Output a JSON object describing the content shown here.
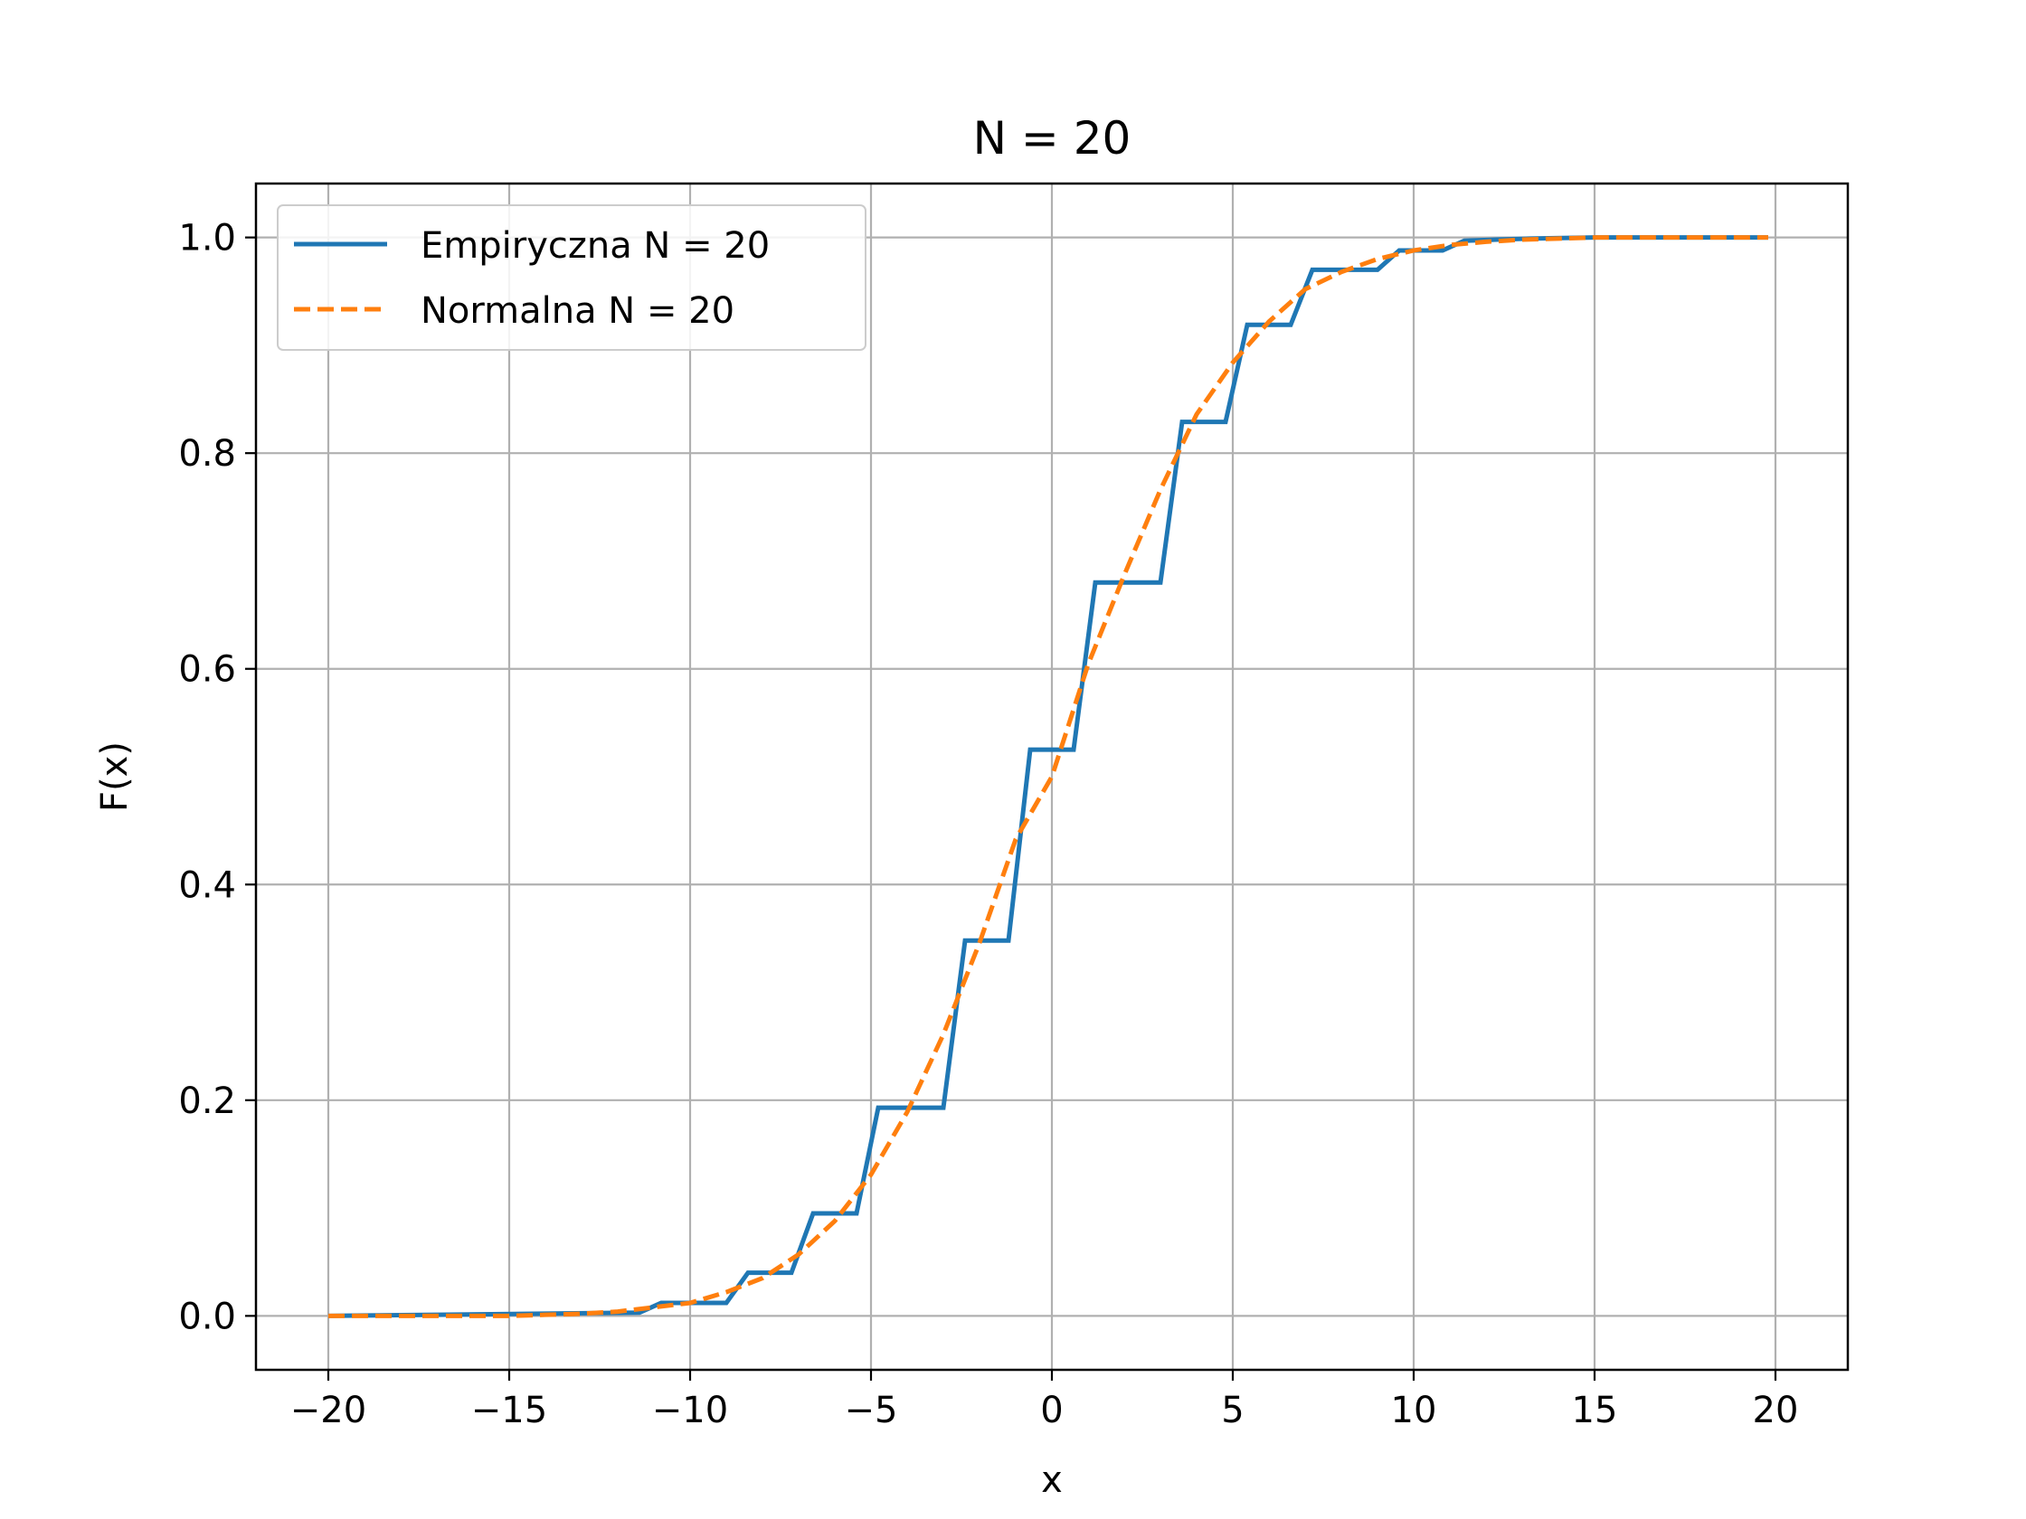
{
  "chart_data": {
    "type": "line",
    "title": "N = 20",
    "xlabel": "x",
    "ylabel": "F(x)",
    "xlim": [
      -22,
      22
    ],
    "ylim": [
      -0.05,
      1.05
    ],
    "xticks": [
      -20,
      -15,
      -10,
      -5,
      0,
      5,
      10,
      15,
      20
    ],
    "xtick_labels": [
      "−20",
      "−15",
      "−10",
      "−5",
      "0",
      "5",
      "10",
      "15",
      "20"
    ],
    "yticks": [
      0.0,
      0.2,
      0.4,
      0.6,
      0.8,
      1.0
    ],
    "ytick_labels": [
      "0.0",
      "0.2",
      "0.4",
      "0.6",
      "0.8",
      "1.0"
    ],
    "grid": true,
    "legend_position": "upper-left",
    "series": [
      {
        "name": "Empiryczna N = 20",
        "style": "solid",
        "color": "#1f77b4",
        "x": [
          -20,
          -11.4,
          -10.8,
          -9.0,
          -8.4,
          -7.2,
          -6.6,
          -5.4,
          -4.8,
          -3.0,
          -2.4,
          -1.2,
          -0.6,
          0.6,
          1.2,
          3.0,
          3.6,
          4.8,
          5.4,
          6.6,
          7.2,
          9.0,
          9.6,
          10.8,
          11.4,
          13.2,
          15.0,
          19.8
        ],
        "y": [
          0.0,
          0.003,
          0.012,
          0.012,
          0.04,
          0.04,
          0.095,
          0.095,
          0.193,
          0.193,
          0.348,
          0.348,
          0.525,
          0.525,
          0.68,
          0.68,
          0.829,
          0.829,
          0.919,
          0.919,
          0.97,
          0.97,
          0.988,
          0.988,
          0.997,
          0.999,
          1.0,
          1.0
        ]
      },
      {
        "name": "Normalna N = 20",
        "style": "dashed",
        "color": "#ff7f0e",
        "x": [
          -20,
          -19,
          -18,
          -17,
          -16,
          -15,
          -14,
          -13,
          -12,
          -11,
          -10,
          -9,
          -8,
          -7,
          -6,
          -5,
          -4,
          -3,
          -2,
          -1,
          0,
          1,
          2,
          3,
          4,
          5,
          6,
          7,
          8,
          9,
          10,
          11,
          12,
          13,
          14,
          15,
          16,
          17,
          18,
          19,
          19.8
        ],
        "y": [
          0.0,
          0.0,
          0.0,
          0.0,
          0.0,
          0.0,
          0.001,
          0.002,
          0.004,
          0.008,
          0.012,
          0.022,
          0.035,
          0.057,
          0.088,
          0.131,
          0.189,
          0.261,
          0.346,
          0.442,
          0.5,
          0.604,
          0.687,
          0.766,
          0.836,
          0.884,
          0.922,
          0.952,
          0.968,
          0.98,
          0.988,
          0.993,
          0.996,
          0.998,
          0.999,
          1.0,
          1.0,
          1.0,
          1.0,
          1.0,
          1.0
        ]
      }
    ]
  }
}
